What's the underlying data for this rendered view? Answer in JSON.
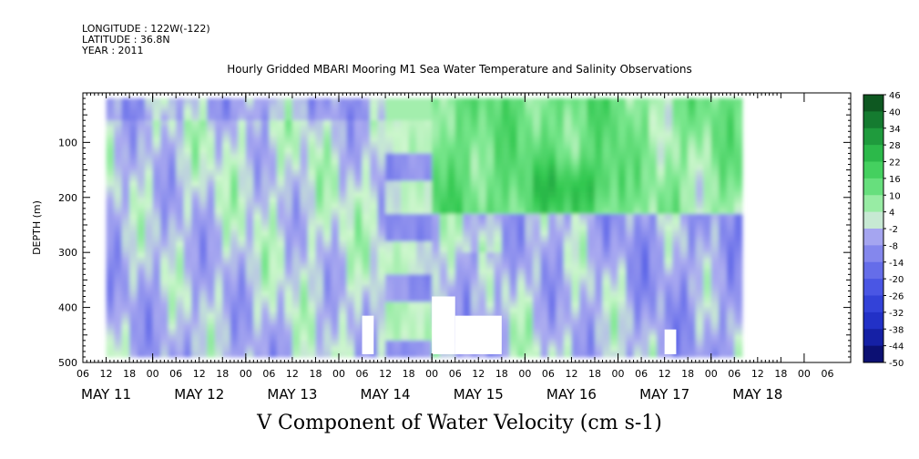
{
  "header": {
    "longitude": "LONGITUDE : 122W(-122)",
    "latitude": "LATITUDE : 36.8N",
    "year": "YEAR : 2011"
  },
  "chart_data": {
    "type": "heatmap",
    "title": "Hourly Gridded MBARI Mooring M1 Sea Water Temperature and Salinity Observations",
    "variable_label": "V Component of Water Velocity (cm s-1)",
    "ylabel": "DEPTH (m)",
    "ylim": [
      500,
      10
    ],
    "y_ticks": [
      100,
      200,
      300,
      400,
      500
    ],
    "x_hour_ticks": [
      "06",
      "12",
      "18",
      "00",
      "06",
      "12",
      "18",
      "00",
      "06",
      "12",
      "18",
      "00",
      "06",
      "12",
      "18",
      "00",
      "06",
      "12",
      "18",
      "00",
      "06",
      "12",
      "18",
      "00",
      "06",
      "12",
      "18",
      "00",
      "06",
      "12",
      "18",
      "00",
      "06"
    ],
    "x_day_labels": [
      "MAY 11",
      "MAY 12",
      "MAY 13",
      "MAY 14",
      "MAY 15",
      "MAY 16",
      "MAY 17",
      "MAY 18"
    ],
    "colorbar_levels": [
      46,
      40,
      34,
      28,
      22,
      16,
      10,
      4,
      -2,
      -8,
      -14,
      -20,
      -26,
      -32,
      -38,
      -44,
      -50
    ],
    "data_depth_range_m": [
      20,
      485
    ],
    "data_time_range_hours_from_may11_00": [
      12,
      176
    ],
    "field_summary": [
      {
        "period": "MAY 11 12 - MAY 14 18",
        "depth": "20-485 m",
        "v_range": [
          -14,
          10
        ],
        "note": "mixed weak positive and negative velocities"
      },
      {
        "period": "MAY 14 12 - MAY 14 18",
        "depth": "20-400 m",
        "v_range": [
          -14,
          4
        ],
        "note": "horizontal layered bands"
      },
      {
        "period": "MAY 15 00 - MAY 17 00",
        "depth": "20-230 m",
        "v_range": [
          10,
          28
        ],
        "note": "strong positive (northward) flow, max near MAY 16 12-18 at ~180 m"
      },
      {
        "period": "MAY 15 00 - MAY 18 06",
        "depth": "250-485 m",
        "v_range": [
          -14,
          10
        ],
        "note": "weak mixed flow"
      },
      {
        "period": "MAY 17 00 - MAY 18 06",
        "depth": "20-230 m",
        "v_range": [
          4,
          22
        ],
        "note": "moderate positive flow"
      }
    ],
    "missing_data": [
      {
        "period": "MAY 13 06-09",
        "depth": "415-485 m"
      },
      {
        "period": "MAY 14 00-06",
        "depth": "380-485 m"
      },
      {
        "period": "MAY 14 06-18",
        "depth": "415-485 m"
      },
      {
        "period": "MAY 17 12-15",
        "depth": "440-485 m"
      }
    ],
    "colors": {
      "positive_max": "#0b4f1d",
      "positive_mid": "#33cc55",
      "near_zero": "#c4f5c4",
      "negative_mid": "#8c8ce8",
      "negative_max": "#08086b",
      "missing": "#ffffff"
    }
  }
}
